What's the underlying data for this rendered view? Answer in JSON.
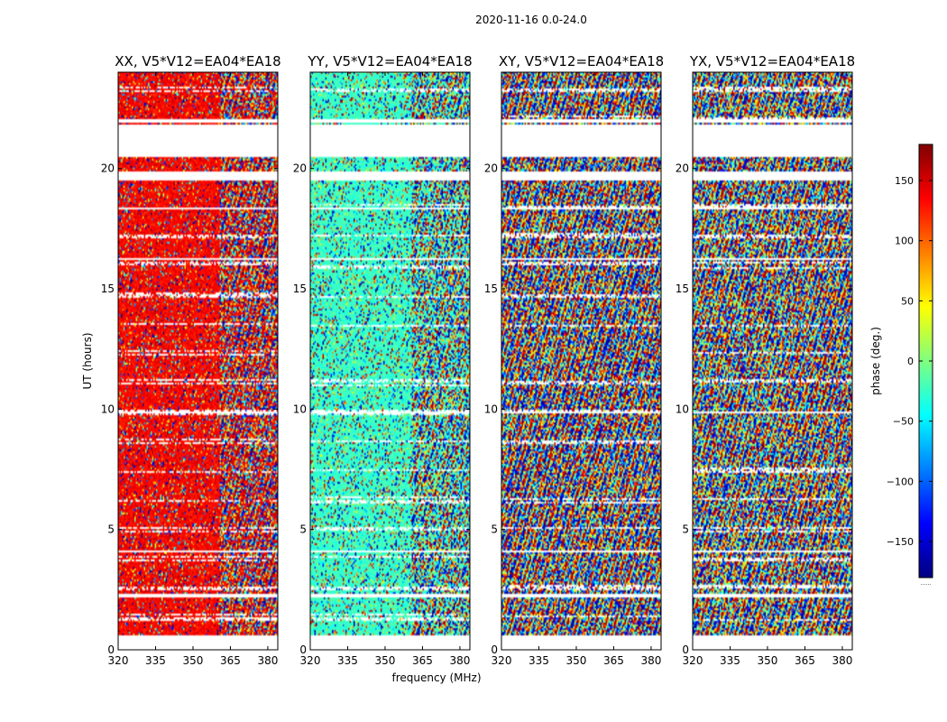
{
  "chart_data": {
    "type": "heatmap",
    "title": "2020-11-16 0.0-24.0",
    "xlabel": "frequency (MHz)",
    "ylabel": "UT (hours)",
    "xlim": [
      320,
      384
    ],
    "ylim": [
      0,
      24
    ],
    "xticks": [
      320,
      335,
      350,
      365,
      380
    ],
    "yticks": [
      0,
      5,
      10,
      15,
      20
    ],
    "colorbar": {
      "label": "phase (deg.)",
      "range": [
        -180,
        180
      ],
      "ticks": [
        150,
        100,
        50,
        0,
        -50,
        -100,
        -150
      ],
      "tick_labels": [
        "150",
        "100",
        "50",
        "0",
        "−50",
        "−100",
        "−150"
      ],
      "colormap": [
        "#00007f",
        "#0000ff",
        "#007fff",
        "#00ffff",
        "#7fff7f",
        "#ffff00",
        "#ff7f00",
        "#ff0000",
        "#7f0000"
      ],
      "footer": "......"
    },
    "panels": [
      {
        "title": "XX, V5*V12=EA04*EA18",
        "coherent_phase_deg": 135,
        "coherence": 0.8
      },
      {
        "title": "YY, V5*V12=EA04*EA18",
        "coherent_phase_deg": -25,
        "coherence": 0.75
      },
      {
        "title": "XY, V5*V12=EA04*EA18",
        "coherent_phase_deg": 0,
        "coherence": 0.0
      },
      {
        "title": "YX, V5*V12=EA04*EA18",
        "coherent_phase_deg": 0,
        "coherence": 0.05
      }
    ],
    "data_gaps_hours": [
      [
        0,
        0.6
      ],
      [
        19.5,
        19.9
      ],
      [
        21.9,
        22.05
      ],
      [
        20.5,
        21.8
      ],
      [
        9.8,
        9.9
      ],
      [
        16.2,
        16.3
      ],
      [
        4.05,
        4.15
      ],
      [
        18.3,
        18.4
      ],
      [
        2.2,
        2.3
      ]
    ]
  }
}
